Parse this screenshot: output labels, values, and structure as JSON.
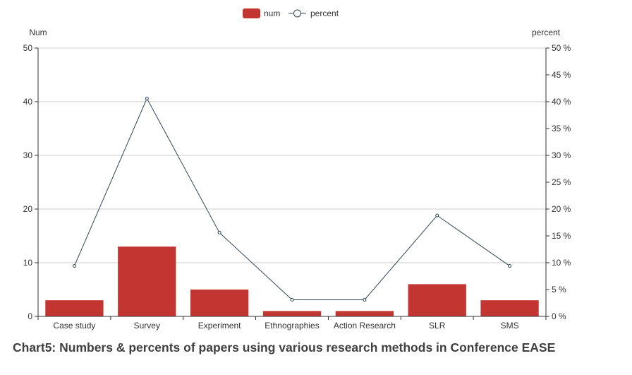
{
  "caption": "Chart5: Numbers & percents of papers using various research methods in Conference EASE",
  "chart_data": {
    "type": "bar",
    "categories": [
      "Case study",
      "Survey",
      "Experiment",
      "Ethnographies",
      "Action Research",
      "SLR",
      "SMS"
    ],
    "series": [
      {
        "name": "num",
        "type": "bar",
        "axis": "left",
        "color": "#c23531",
        "values": [
          3,
          13,
          5,
          1,
          1,
          6,
          3
        ]
      },
      {
        "name": "percent",
        "type": "line",
        "axis": "right",
        "color": "#2f4554",
        "values": [
          9.4,
          40.6,
          15.6,
          3.1,
          3.1,
          18.8,
          9.4
        ]
      }
    ],
    "left_axis": {
      "name": "Num",
      "min": 0,
      "max": 50,
      "interval": 10
    },
    "right_axis": {
      "name": "percent",
      "min": 0,
      "max": 50,
      "interval": 5,
      "unit": " %"
    },
    "legend_position": "top-center",
    "grid": true
  }
}
